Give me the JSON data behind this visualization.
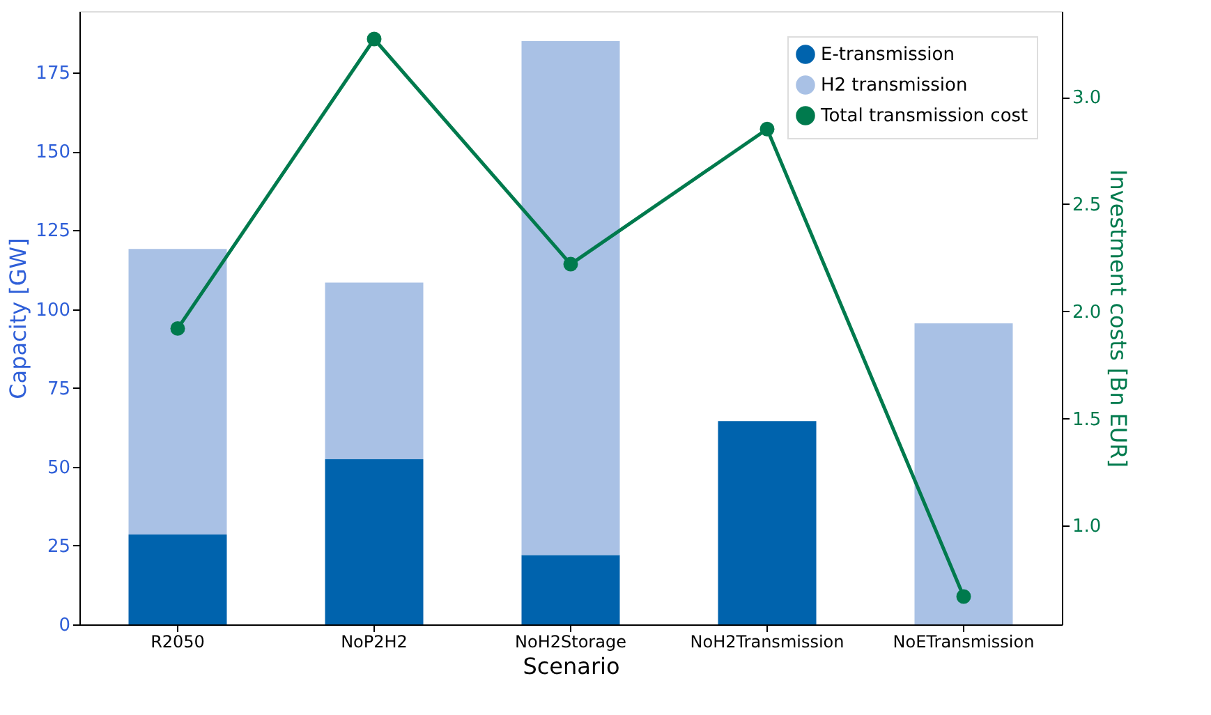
{
  "chart_data": {
    "type": "bar",
    "stacked": true,
    "xlabel": "Scenario",
    "ylabel": "Capacity [GW]",
    "y2label": "Investment costs [Bn EUR]",
    "categories": [
      "R2050",
      "NoP2H2",
      "NoH2Storage",
      "NoH2Transmission",
      "NoETransmission"
    ],
    "series": [
      {
        "name": "E-transmission",
        "color": "#0063ad",
        "values": [
          28.5,
          52.4,
          22,
          64.5,
          0
        ]
      },
      {
        "name": "H2 transmission",
        "color": "#a9c1e5",
        "values": [
          90.6,
          56,
          163,
          0,
          95.5
        ]
      },
      {
        "name": "Total transmission cost",
        "type": "line",
        "axis": "y2",
        "marker": "circle",
        "color": "#007a4d",
        "values": [
          1.92,
          3.27,
          2.22,
          2.85,
          0.67
        ]
      }
    ],
    "ylim": [
      0,
      194.5
    ],
    "yticks": [
      0,
      25,
      50,
      75,
      100,
      125,
      150,
      175
    ],
    "y2lim": [
      0.54,
      3.4
    ],
    "y2ticks": [
      {
        "value": 1.0,
        "label": "1.0"
      },
      {
        "value": 1.5,
        "label": "1.5"
      },
      {
        "value": 2.0,
        "label": "2.0"
      },
      {
        "value": 2.5,
        "label": "2.5"
      },
      {
        "value": 3.0,
        "label": "3.0"
      }
    ],
    "legend": "top right"
  }
}
